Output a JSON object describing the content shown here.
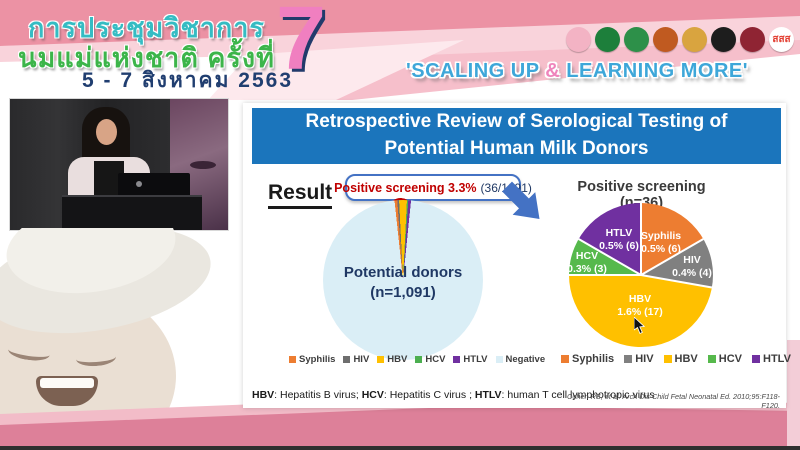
{
  "header": {
    "title_line1": "การประชุมวิชาการ",
    "title_line2": "นมแม่แห่งชาติ ครั้งที่",
    "date_line": "5 - 7 สิงหาคม 2563",
    "edition_number": "7",
    "slogan_part1": "'SCALING UP ",
    "slogan_amp": "&",
    "slogan_part2": " LEARNING MORE'",
    "colors": {
      "thai_title": "#35bcc3",
      "thai_subtitle": "#3cb54a",
      "date": "#203e70",
      "seven": "#f07fc0",
      "slogan": "#3ea7d9",
      "slogan_amp": "#ef84bc",
      "banner_pink": "#ec92a4"
    },
    "logos": [
      {
        "name": "mother-child-foundation-logo",
        "color": "#f3b3c4",
        "text": ""
      },
      {
        "name": "green-public-health-logo",
        "color": "#1d7f3b",
        "text": ""
      },
      {
        "name": "green-health-department-logo",
        "color": "#2d9049",
        "text": ""
      },
      {
        "name": "red-gold-temple-logo",
        "color": "#c05a20",
        "text": ""
      },
      {
        "name": "royal-crest-logo",
        "color": "#d9a43f",
        "text": ""
      },
      {
        "name": "black-society-emblem-logo",
        "color": "#1d1d1d",
        "text": ""
      },
      {
        "name": "dark-red-college-emblem-logo",
        "color": "#8f2433",
        "text": ""
      },
      {
        "name": "thai-health-promotion-logo",
        "color": "#ffffff",
        "text": "สสส"
      }
    ]
  },
  "slide": {
    "title": "Retrospective Review of Serological Testing of Potential Human Milk Donors",
    "result_label": "Result",
    "footnote": {
      "p1": "HBV",
      "p2": ": Hepatitis B virus; ",
      "p3": "HCV",
      "p4": ": Hepatitis C virus ; ",
      "p5": "HTLV",
      "p6": ": human T cell lymphotropic virus"
    },
    "citation": "Cohen RS, et al. Arch Dis Child Fetal Neonatal Ed. 2010;95:F118-F120.",
    "colors": {
      "title_bar_blue": "#1b75bc",
      "callout_border": "#4472c4",
      "callout_red": "#c00000",
      "navy": "#1f3864",
      "arrow_blue": "#4472c4"
    }
  },
  "chart_data": [
    {
      "type": "pie",
      "title": "Potential donors (n=1,091)",
      "center_label_line1": "Potential donors",
      "center_label_line2": "(n=1,091)",
      "total_n": 1091,
      "annotation_bold": "Positive screening 3.3%",
      "annotation_detail": "(36/1091)",
      "legend_position": "bottom",
      "slices": [
        {
          "label": "Syphilis",
          "count": 6,
          "color": "#ed7d31"
        },
        {
          "label": "HIV",
          "count": 4,
          "color": "#6e6e6e"
        },
        {
          "label": "HBV",
          "count": 17,
          "color": "#ffc000"
        },
        {
          "label": "HCV",
          "count": 3,
          "color": "#4caf50"
        },
        {
          "label": "HTLV",
          "count": 6,
          "color": "#7030a0"
        },
        {
          "label": "Negative",
          "count": 1055,
          "color": "#daeef6"
        }
      ]
    },
    {
      "type": "pie",
      "title": "Positive screening (n=36)",
      "total_n": 36,
      "legend_position": "bottom",
      "slices": [
        {
          "label": "Syphilis",
          "count": 6,
          "pct_label": "0.5% (6)",
          "color": "#ed7d31"
        },
        {
          "label": "HIV",
          "count": 4,
          "pct_label": "0.4% (4)",
          "color": "#808080"
        },
        {
          "label": "HBV",
          "count": 17,
          "pct_label": "1.6% (17)",
          "color": "#ffc000"
        },
        {
          "label": "HCV",
          "count": 3,
          "pct_label": "0.3% (3)",
          "color": "#56b94c"
        },
        {
          "label": "HTLV",
          "count": 6,
          "pct_label": "0.5% (6)",
          "color": "#7030a0"
        }
      ]
    }
  ]
}
